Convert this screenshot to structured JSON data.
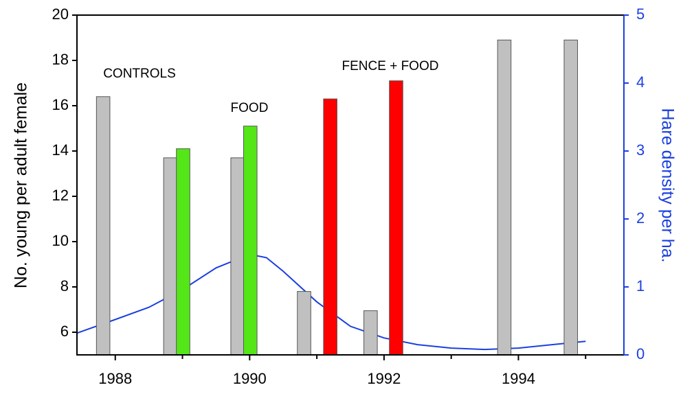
{
  "chart_data": {
    "type": "bar",
    "ylabel": "No. young per adult female",
    "y2label": "Hare density per ha.",
    "xlim": [
      1987.43,
      1995.57
    ],
    "xticks": [
      1988,
      1990,
      1992,
      1994
    ],
    "xminor_ticks": [
      1989,
      1991,
      1993,
      1995
    ],
    "ylim": [
      5,
      20
    ],
    "yticks": [
      6,
      8,
      10,
      12,
      14,
      16,
      18,
      20
    ],
    "y2lim": [
      0,
      5
    ],
    "y2ticks": [
      0,
      1,
      2,
      3,
      4,
      5
    ],
    "y2color": "#1a3fe0",
    "grid": false,
    "bar_width": 0.2,
    "annotations": [
      "CONTROLS",
      "FOOD",
      "FENCE + FOOD"
    ],
    "series": [
      {
        "type": "bar",
        "color": "#c0c0c0",
        "x": [
          1987.82,
          1988.82,
          1989.82,
          1990.81,
          1991.8,
          1993.79,
          1994.78
        ],
        "values": [
          16.4,
          13.7,
          13.7,
          7.8,
          6.95,
          18.9,
          18.9
        ]
      },
      {
        "type": "bar",
        "color": "#55e617",
        "x": [
          1989.01,
          1990.01
        ],
        "values": [
          14.1,
          15.1
        ]
      },
      {
        "type": "bar",
        "color": "#ff0000",
        "x": [
          1991.2,
          1992.18
        ],
        "values": [
          16.3,
          17.1
        ]
      },
      {
        "type": "line",
        "axis": "y2",
        "color": "#1a3fe0",
        "x": [
          1987.43,
          1988,
          1988.5,
          1989,
          1989.5,
          1990,
          1990.25,
          1990.5,
          1991,
          1991.5,
          1992,
          1992.5,
          1993,
          1993.5,
          1994,
          1994.5,
          1995
        ],
        "values": [
          0.32,
          0.52,
          0.7,
          0.96,
          1.28,
          1.48,
          1.43,
          1.23,
          0.78,
          0.42,
          0.25,
          0.15,
          0.1,
          0.08,
          0.1,
          0.15,
          0.2
        ]
      }
    ]
  }
}
